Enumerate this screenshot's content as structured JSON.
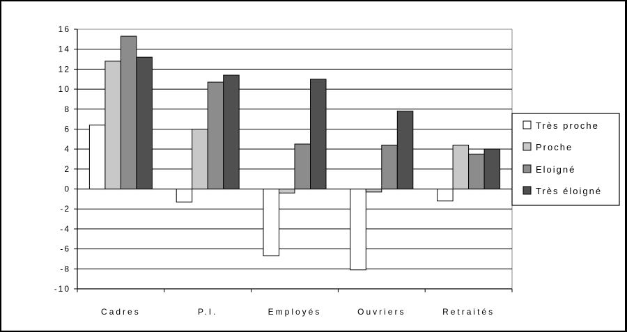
{
  "chart_data": {
    "type": "bar",
    "title": "",
    "xlabel": "",
    "ylabel": "",
    "ylim": [
      -10,
      16
    ],
    "yticks": [
      -10,
      -8,
      -6,
      -4,
      -2,
      0,
      2,
      4,
      6,
      8,
      10,
      12,
      14,
      16
    ],
    "grid": true,
    "legend_position": "right",
    "categories": [
      "Cadres",
      "P.I.",
      "Employés",
      "Ouvriers",
      "Retraités"
    ],
    "series": [
      {
        "name": "Très proche",
        "color": "#ffffff",
        "values": [
          6.4,
          -1.3,
          -6.7,
          -8.1,
          -1.2
        ]
      },
      {
        "name": "Proche",
        "color": "#c8c8c8",
        "values": [
          12.8,
          6.0,
          -0.4,
          -0.3,
          4.4
        ]
      },
      {
        "name": "Eloigné",
        "color": "#8c8c8c",
        "values": [
          15.3,
          10.7,
          4.5,
          4.4,
          3.5
        ]
      },
      {
        "name": "Très éloigné",
        "color": "#505050",
        "values": [
          13.2,
          11.4,
          11.0,
          7.8,
          4.0
        ]
      }
    ]
  }
}
